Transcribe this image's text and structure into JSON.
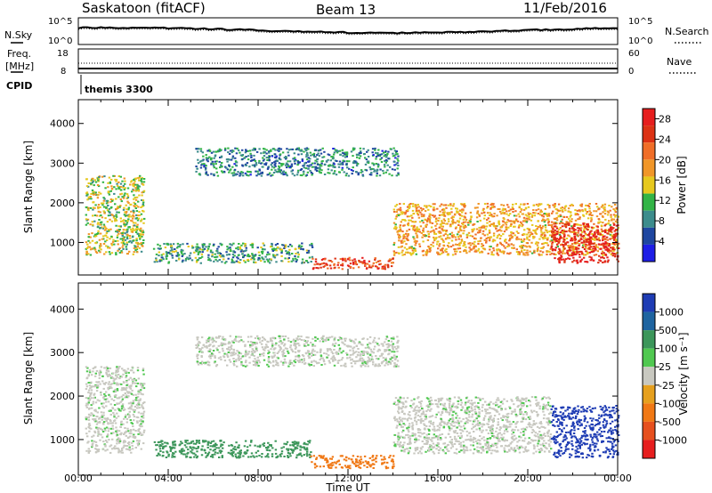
{
  "header": {
    "station": "Saskatoon (fitACF)",
    "beam": "Beam 13",
    "date": "11/Feb/2016"
  },
  "noise_panel": {
    "left_label": "N.Sky",
    "left_ticks": [
      "10^5",
      "10^0"
    ],
    "right_label": "N.Search",
    "right_ticks": [
      "10^5",
      "10^0"
    ]
  },
  "freq_panel": {
    "left_label_1": "Freq.",
    "left_label_2": "[MHz]",
    "left_ticks": [
      "18",
      "8"
    ],
    "right_label": "Nave",
    "right_ticks": [
      "60",
      "0"
    ],
    "cpid_label": "CPID",
    "cpid_value": "themis 3300"
  },
  "colors": {
    "power_scale": [
      "#1e1ee6",
      "#1e46a0",
      "#3c8c8c",
      "#32b446",
      "#e6c81e",
      "#f09628",
      "#f06e28",
      "#dc3214",
      "#e61e1e"
    ],
    "velocity_scale": [
      "#1e3cb4",
      "#1e64a0",
      "#3c965a",
      "#50c850",
      "#c8c8c0",
      "#e6a01e",
      "#f07814",
      "#e6501e",
      "#e61e1e"
    ]
  },
  "chart_data": [
    {
      "type": "heatmap",
      "panel": "power",
      "xlabel": "Time UT",
      "ylabel": "Slant Range [km]",
      "x_ticks": [
        "00:00",
        "04:00",
        "08:00",
        "12:00",
        "16:00",
        "20:00",
        "00:00"
      ],
      "x_range_hours": [
        0,
        24
      ],
      "y_ticks": [
        1000,
        2000,
        3000,
        4000
      ],
      "y_range": [
        180,
        4600
      ],
      "colorbar_label": "Power [dB]",
      "colorbar_ticks": [
        4,
        8,
        12,
        16,
        20,
        24,
        28
      ],
      "colorbar_range": [
        0,
        30
      ],
      "echo_regions": [
        {
          "t_start": 0.3,
          "t_end": 2.9,
          "range_low": 700,
          "range_high": 2700,
          "power_db": 14
        },
        {
          "t_start": 3.3,
          "t_end": 10.4,
          "range_low": 500,
          "range_high": 1000,
          "power_db": 10
        },
        {
          "t_start": 5.2,
          "t_end": 14.2,
          "range_low": 2700,
          "range_high": 3400,
          "power_db": 8
        },
        {
          "t_start": 10.3,
          "t_end": 14.0,
          "range_low": 350,
          "range_high": 650,
          "power_db": 24
        },
        {
          "t_start": 14.0,
          "t_end": 24.0,
          "range_low": 700,
          "range_high": 2000,
          "power_db": 18
        },
        {
          "t_start": 21.0,
          "t_end": 24.0,
          "range_low": 500,
          "range_high": 1500,
          "power_db": 28
        }
      ]
    },
    {
      "type": "heatmap",
      "panel": "velocity",
      "xlabel": "Time UT",
      "ylabel": "Slant Range [km]",
      "x_ticks": [
        "00:00",
        "04:00",
        "08:00",
        "12:00",
        "16:00",
        "20:00",
        "00:00"
      ],
      "x_range_hours": [
        0,
        24
      ],
      "y_ticks": [
        1000,
        2000,
        3000,
        4000
      ],
      "y_range": [
        180,
        4600
      ],
      "colorbar_label": "Velocity [m s⁻¹]",
      "colorbar_ticks": [
        "1000",
        "500",
        "100",
        "25",
        "-25",
        "-100",
        "-500",
        "-1000"
      ],
      "echo_regions": [
        {
          "t_start": 0.3,
          "t_end": 2.9,
          "range_low": 700,
          "range_high": 2700,
          "velocity": 0
        },
        {
          "t_start": 3.3,
          "t_end": 10.4,
          "range_low": 600,
          "range_high": 1000,
          "velocity": 80
        },
        {
          "t_start": 5.2,
          "t_end": 14.2,
          "range_low": 2700,
          "range_high": 3400,
          "velocity": 0
        },
        {
          "t_start": 10.3,
          "t_end": 14.0,
          "range_low": 350,
          "range_high": 650,
          "velocity": -150
        },
        {
          "t_start": 14.0,
          "t_end": 21.0,
          "range_low": 700,
          "range_high": 2000,
          "velocity": 0
        },
        {
          "t_start": 21.0,
          "t_end": 24.0,
          "range_low": 600,
          "range_high": 1800,
          "velocity": 600
        }
      ]
    }
  ]
}
